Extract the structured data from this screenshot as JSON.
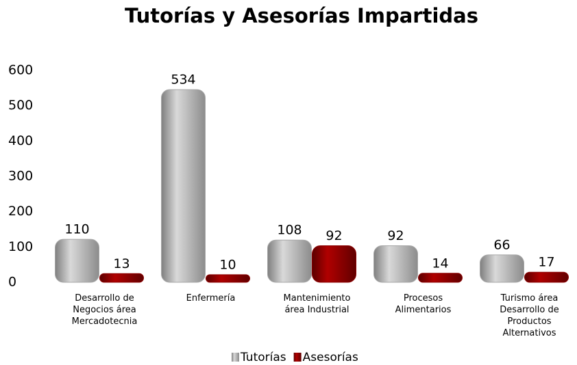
{
  "chart_data": {
    "type": "bar",
    "title": "Tutorías y Asesorías Impartidas",
    "categories": [
      "Desarrollo de Negocios área Mercadotecnia",
      "Enfermería",
      "Mantenimiento área Industrial",
      "Procesos Alimentarios",
      "Turismo área Desarrollo de Productos Alternativos"
    ],
    "series": [
      {
        "name": "Tutorías",
        "color": "#a6a6a6",
        "values": [
          110,
          534,
          108,
          92,
          66
        ]
      },
      {
        "name": "Asesorías",
        "color": "#8b0000",
        "values": [
          13,
          10,
          92,
          14,
          17
        ]
      }
    ],
    "ylim": [
      0,
      600
    ],
    "yticks": [
      0,
      100,
      200,
      300,
      400,
      500,
      600
    ],
    "grid": false,
    "legend": "bottom"
  }
}
